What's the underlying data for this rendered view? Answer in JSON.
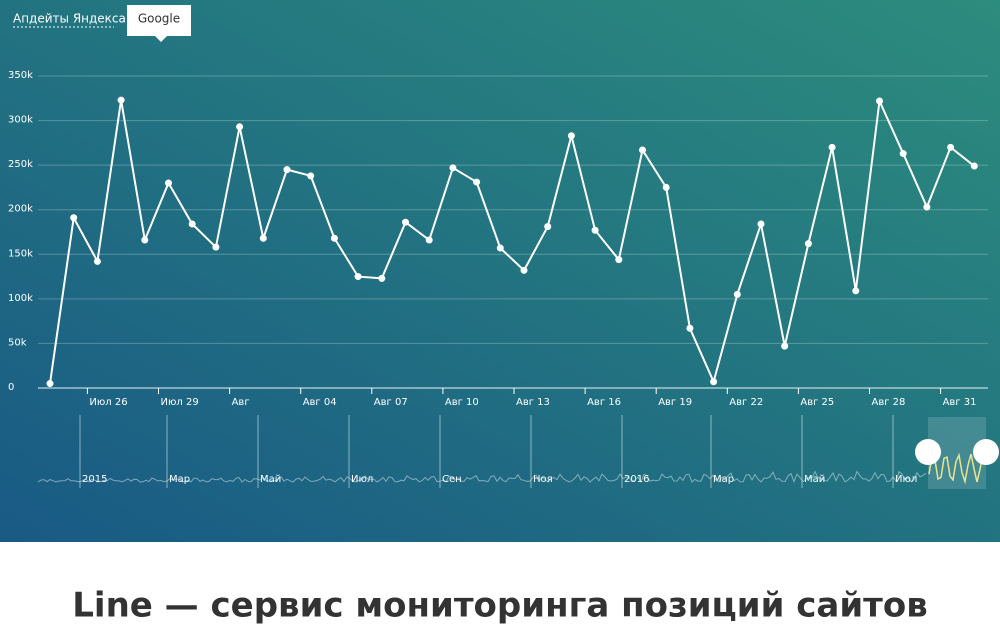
{
  "tabs": [
    "Апдейты Яндекса",
    "Google"
  ],
  "chart_data": {
    "type": "line",
    "color": "#ffffff",
    "grid": true,
    "categories": [
      null,
      null,
      "Июл 26",
      null,
      null,
      "Июл 29",
      null,
      null,
      "Авг",
      null,
      null,
      "Авг 04",
      null,
      null,
      "Авг 07",
      null,
      null,
      "Авг 10",
      null,
      null,
      "Авг 13",
      null,
      null,
      "Авг 16",
      null,
      null,
      "Авг 19",
      null,
      null,
      "Авг 22",
      null,
      null,
      "Авг 25",
      null,
      null,
      "Авг 28",
      null,
      null,
      "Авг 31",
      null
    ],
    "values": [
      5000,
      191000,
      142000,
      323000,
      166000,
      230000,
      184000,
      158000,
      293000,
      168000,
      245000,
      238000,
      168000,
      125000,
      123000,
      186000,
      166000,
      247000,
      231000,
      157000,
      132000,
      181000,
      283000,
      177000,
      144000,
      267000,
      225000,
      67000,
      7000,
      105000,
      184000,
      47000,
      162000,
      270000,
      109000,
      322000,
      263000,
      203000,
      270000,
      249000
    ],
    "ylim": [
      0,
      350000
    ],
    "yticks": [
      0,
      {
        "value": 50000,
        "label": "50k"
      },
      {
        "value": 100000,
        "label": "100k"
      },
      {
        "value": 150000,
        "label": "150k"
      },
      {
        "value": 200000,
        "label": "200k"
      },
      {
        "value": 250000,
        "label": "250k"
      },
      {
        "value": 300000,
        "label": "300k"
      },
      {
        "value": 350000,
        "label": "350k"
      }
    ]
  },
  "navigator": {
    "labels": [
      "2015",
      "Мар",
      "Май",
      "Июл",
      "Сен",
      "Ноя",
      "2016",
      "Мар",
      "Май",
      "Июл"
    ]
  },
  "caption": "Line — сервис мониторинга позиций сайтов"
}
